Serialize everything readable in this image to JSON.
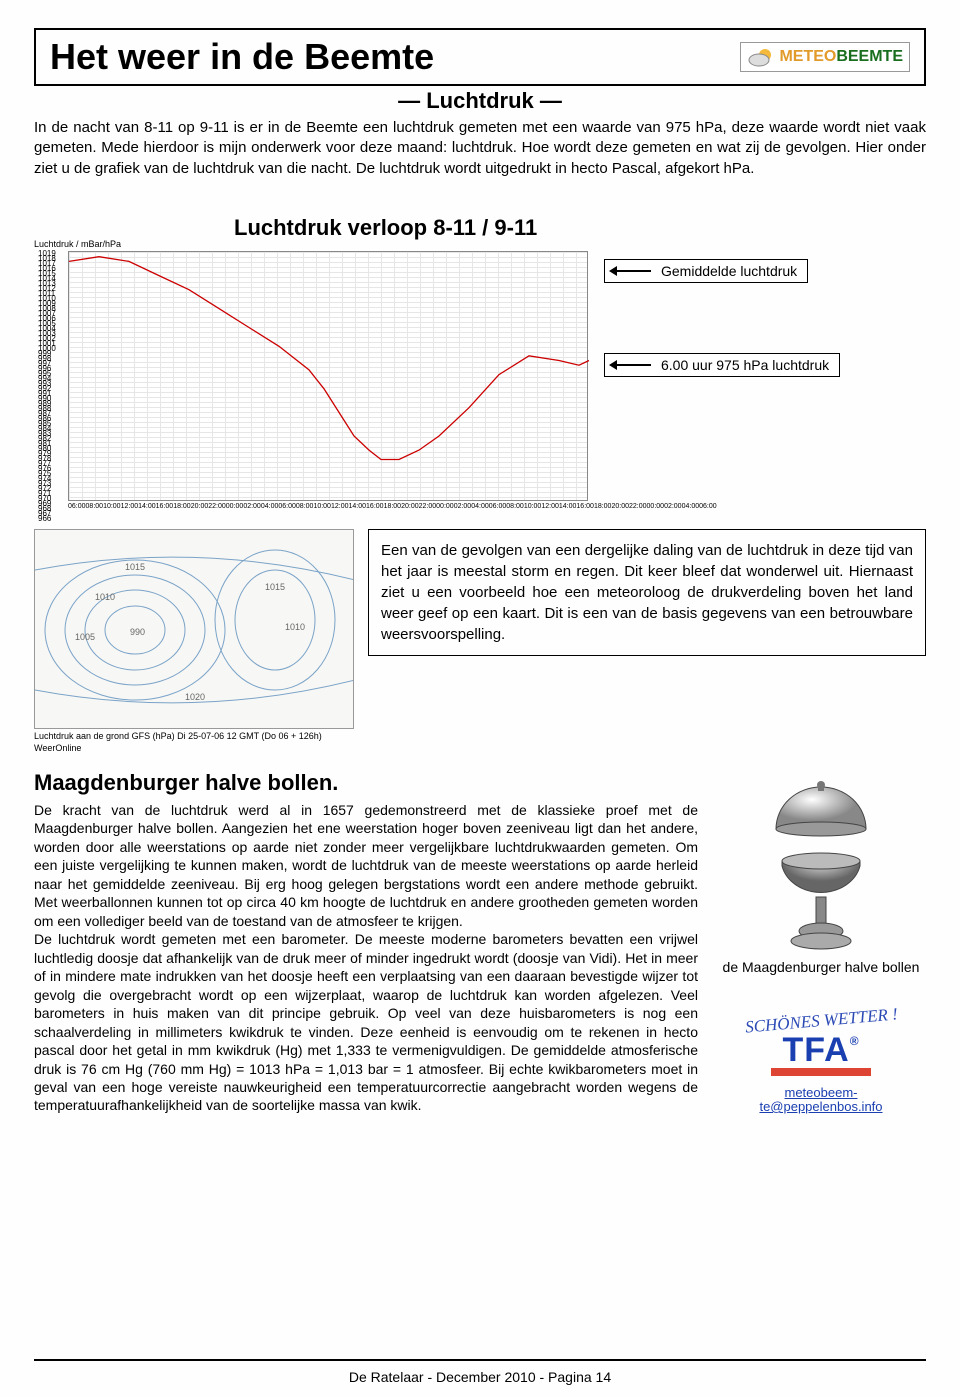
{
  "header": {
    "title": "Het weer in de Beemte",
    "logo_prefix": "METEO",
    "logo_suffix": "BEEMTE"
  },
  "subtitle": "— Luchtdruk —",
  "intro": "In de nacht van 8-11 op 9-11 is er in de Beemte een luchtdruk gemeten met een waarde van 975 hPa, deze waarde wordt niet vaak gemeten. Mede hierdoor is mijn onderwerk voor deze maand: luchtdruk. Hoe wordt deze gemeten en wat zij de gevolgen. Hier onder ziet u de grafiek van de luchtdruk van die nacht. De luchtdruk wordt uitgedrukt in hecto Pascal, afgekort hPa.",
  "chart": {
    "title": "Luchtdruk verloop 8-11 / 9-11",
    "ylabel": "Luchtdruk / mBar/hPa",
    "ylim": [
      966,
      1019
    ],
    "yticks": [
      "1019",
      "1018",
      "1017",
      "1016",
      "1015",
      "1014",
      "1013",
      "1012",
      "1011",
      "1010",
      "1009",
      "1008",
      "1007",
      "1006",
      "1005",
      "1004",
      "1003",
      "1002",
      "1001",
      "1000",
      "999",
      "998",
      "997",
      "996",
      "995",
      "994",
      "993",
      "992",
      "991",
      "990",
      "989",
      "988",
      "987",
      "986",
      "985",
      "984",
      "983",
      "982",
      "981",
      "980",
      "979",
      "978",
      "977",
      "976",
      "975",
      "974",
      "973",
      "972",
      "971",
      "970",
      "969",
      "968",
      "967",
      "966"
    ],
    "xticks": [
      "06:00",
      "08:00",
      "10:00",
      "12:00",
      "14:00",
      "16:00",
      "18:00",
      "20:00",
      "22:00",
      "00:00",
      "02:00",
      "04:00",
      "06:00",
      "08:00",
      "10:00",
      "12:00",
      "14:00",
      "16:00",
      "18:00",
      "20:00",
      "22:00",
      "00:00",
      "02:00",
      "04:00",
      "06:00",
      "08:00",
      "10:00",
      "12:00",
      "14:00",
      "16:00",
      "18:00",
      "20:00",
      "22:00",
      "00:00",
      "02:00",
      "04:00",
      "06:00"
    ],
    "line_color": "#cc0000",
    "grid_color": "#e6e6e6",
    "background_color": "#ffffff",
    "line_points": [
      [
        0,
        1017
      ],
      [
        30,
        1018
      ],
      [
        60,
        1017
      ],
      [
        90,
        1014
      ],
      [
        120,
        1011
      ],
      [
        150,
        1007
      ],
      [
        180,
        1003
      ],
      [
        210,
        999
      ],
      [
        240,
        994
      ],
      [
        255,
        990
      ],
      [
        270,
        985
      ],
      [
        285,
        980
      ],
      [
        300,
        977
      ],
      [
        312,
        975
      ],
      [
        330,
        975
      ],
      [
        350,
        977
      ],
      [
        370,
        980
      ],
      [
        400,
        986
      ],
      [
        430,
        993
      ],
      [
        460,
        997
      ],
      [
        490,
        996
      ],
      [
        510,
        995
      ],
      [
        520,
        996
      ]
    ],
    "annotations": {
      "avg": "Gemiddelde luchtdruk",
      "low": "6.00 uur 975 hPa luchtdruk"
    }
  },
  "map": {
    "caption": "Luchtdruk aan de grond GFS (hPa)    Di 25-07-06 12 GMT (Do 06 + 126h)",
    "caption2": "WeerOnline",
    "isobar_color": "#7aa3c8"
  },
  "mid_text": "Een van de gevolgen van een dergelijke daling van de luchtdruk in deze tijd van het jaar is meestal storm en regen. Dit keer bleef dat wonderwel uit. Hiernaast ziet u een voorbeeld hoe een meteoroloog de drukverdeling boven het land weer geef op een kaart. Dit is een van de basis gegevens van een betrouwbare weersvoorspelling.",
  "magdeburg": {
    "heading": "Maagdenburger halve bollen.",
    "body": "De kracht van de luchtdruk werd al in 1657 gedemonstreerd met de klassieke proef met de Maagdenburger halve bollen. Aangezien het ene weerstation hoger boven zeeniveau ligt dan het andere, worden door alle weerstations op aarde niet zonder meer vergelijkbare luchtdrukwaarden gemeten. Om een juiste vergelijking te kunnen maken, wordt de luchtdruk van de meeste weerstations op aarde herleid naar het gemiddelde zeeniveau. Bij erg hoog gelegen bergstations wordt een andere methode gebruikt. Met weerballonnen kunnen tot op circa 40 km hoogte de luchtdruk en andere grootheden gemeten worden om een vollediger beeld van de toestand van de atmosfeer te krijgen.\nDe luchtdruk wordt gemeten met een barometer. De meeste moderne barometers bevatten een vrijwel luchtledig doosje dat afhankelijk van de druk meer of minder ingedrukt wordt (doosje van Vidi). Het in meer of in mindere mate indrukken van het doosje heeft een verplaatsing van een daaraan bevestigde wijzer tot gevolg die overgebracht wordt op een wijzerplaat, waarop de luchtdruk kan worden afgelezen. Veel barometers in huis maken van dit principe gebruik. Op veel van deze huisbarometers is nog een schaalverdeling in millimeters kwikdruk te vinden. Deze eenheid is eenvoudig om te rekenen in hecto pascal door het getal in mm kwikdruk (Hg) met 1,333 te vermenigvuldigen. De gemiddelde atmosferische druk is 76 cm Hg (760 mm Hg) = 1013 hPa = 1,013 bar = 1 atmosfeer. Bij echte kwikbarometers moet in geval van een hoge vereiste nauwkeurigheid een temperatuurcorrectie aangebracht worden wegens de temperatuurafhankelijkheid van de soortelijke massa van kwik."
  },
  "sidebar": {
    "image_caption": "de Maagdenburger halve bollen",
    "wetter": "SCHÖNES WETTER !",
    "tfa": "TFA",
    "email": "meteobeemte@peppelenbos.info"
  },
  "footer": "De Ratelaar - December 2010 - Pagina 14"
}
